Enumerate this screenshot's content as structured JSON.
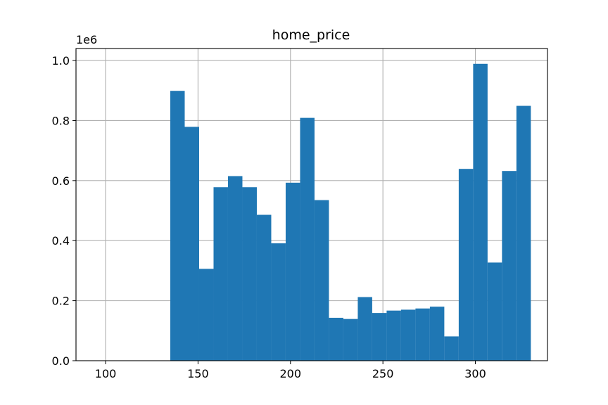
{
  "chart_data": {
    "type": "bar",
    "title": "home_price",
    "y_offset_label": "1e6",
    "xlim": [
      84,
      339
    ],
    "ylim": [
      0,
      1.04
    ],
    "grid": true,
    "bar_color": "#1f77b4",
    "x_ticks": [
      100,
      150,
      200,
      250,
      300
    ],
    "y_ticks": [
      0.0,
      0.2,
      0.4,
      0.6,
      0.8,
      1.0
    ],
    "bins": [
      {
        "x0": 135.0,
        "x1": 142.8,
        "value": 0.899
      },
      {
        "x0": 142.8,
        "x1": 150.6,
        "value": 0.779
      },
      {
        "x0": 150.6,
        "x1": 158.4,
        "value": 0.306
      },
      {
        "x0": 158.4,
        "x1": 166.2,
        "value": 0.578
      },
      {
        "x0": 166.2,
        "x1": 174.0,
        "value": 0.615
      },
      {
        "x0": 174.0,
        "x1": 181.8,
        "value": 0.578
      },
      {
        "x0": 181.8,
        "x1": 189.6,
        "value": 0.486
      },
      {
        "x0": 189.6,
        "x1": 197.4,
        "value": 0.391
      },
      {
        "x0": 197.4,
        "x1": 205.2,
        "value": 0.593
      },
      {
        "x0": 205.2,
        "x1": 213.0,
        "value": 0.809
      },
      {
        "x0": 213.0,
        "x1": 220.8,
        "value": 0.535
      },
      {
        "x0": 220.8,
        "x1": 228.6,
        "value": 0.143
      },
      {
        "x0": 228.6,
        "x1": 236.4,
        "value": 0.139
      },
      {
        "x0": 236.4,
        "x1": 244.2,
        "value": 0.212
      },
      {
        "x0": 244.2,
        "x1": 252.0,
        "value": 0.159
      },
      {
        "x0": 252.0,
        "x1": 259.8,
        "value": 0.167
      },
      {
        "x0": 259.8,
        "x1": 267.6,
        "value": 0.17
      },
      {
        "x0": 267.6,
        "x1": 275.4,
        "value": 0.174
      },
      {
        "x0": 275.4,
        "x1": 283.2,
        "value": 0.18
      },
      {
        "x0": 283.2,
        "x1": 291.0,
        "value": 0.081
      },
      {
        "x0": 291.0,
        "x1": 298.8,
        "value": 0.639
      },
      {
        "x0": 298.8,
        "x1": 306.6,
        "value": 0.989
      },
      {
        "x0": 306.6,
        "x1": 314.4,
        "value": 0.327
      },
      {
        "x0": 314.4,
        "x1": 322.2,
        "value": 0.632
      },
      {
        "x0": 322.2,
        "x1": 330.0,
        "value": 0.849
      }
    ]
  }
}
